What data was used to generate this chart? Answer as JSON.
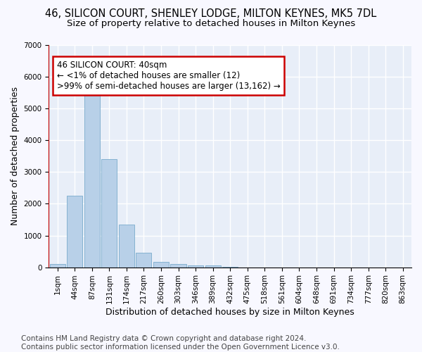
{
  "title_line1": "46, SILICON COURT, SHENLEY LODGE, MILTON KEYNES, MK5 7DL",
  "title_line2": "Size of property relative to detached houses in Milton Keynes",
  "xlabel": "Distribution of detached houses by size in Milton Keynes",
  "ylabel": "Number of detached properties",
  "footnote": "Contains HM Land Registry data © Crown copyright and database right 2024.\nContains public sector information licensed under the Open Government Licence v3.0.",
  "bar_labels": [
    "1sqm",
    "44sqm",
    "87sqm",
    "131sqm",
    "174sqm",
    "217sqm",
    "260sqm",
    "303sqm",
    "346sqm",
    "389sqm",
    "432sqm",
    "475sqm",
    "518sqm",
    "561sqm",
    "604sqm",
    "648sqm",
    "691sqm",
    "734sqm",
    "777sqm",
    "820sqm",
    "863sqm"
  ],
  "bar_values": [
    100,
    2250,
    5450,
    3400,
    1350,
    450,
    175,
    100,
    50,
    50,
    5,
    0,
    0,
    0,
    0,
    0,
    0,
    0,
    0,
    0,
    0
  ],
  "bar_color": "#b8d0e8",
  "bar_edge_color": "#7aabcc",
  "annotation_title": "46 SILICON COURT: 40sqm",
  "annotation_line1": "← <1% of detached houses are smaller (12)",
  "annotation_line2": ">99% of semi-detached houses are larger (13,162) →",
  "vline_color": "#cc0000",
  "annotation_box_color": "#ffffff",
  "annotation_box_edge": "#cc0000",
  "ylim": [
    0,
    7000
  ],
  "yticks": [
    0,
    1000,
    2000,
    3000,
    4000,
    5000,
    6000,
    7000
  ],
  "background_color": "#e8eef8",
  "grid_color": "#ffffff",
  "fig_bg_color": "#f8f8ff",
  "title_fontsize": 10.5,
  "subtitle_fontsize": 9.5,
  "axis_label_fontsize": 9,
  "tick_fontsize": 7.5,
  "footnote_fontsize": 7.5
}
